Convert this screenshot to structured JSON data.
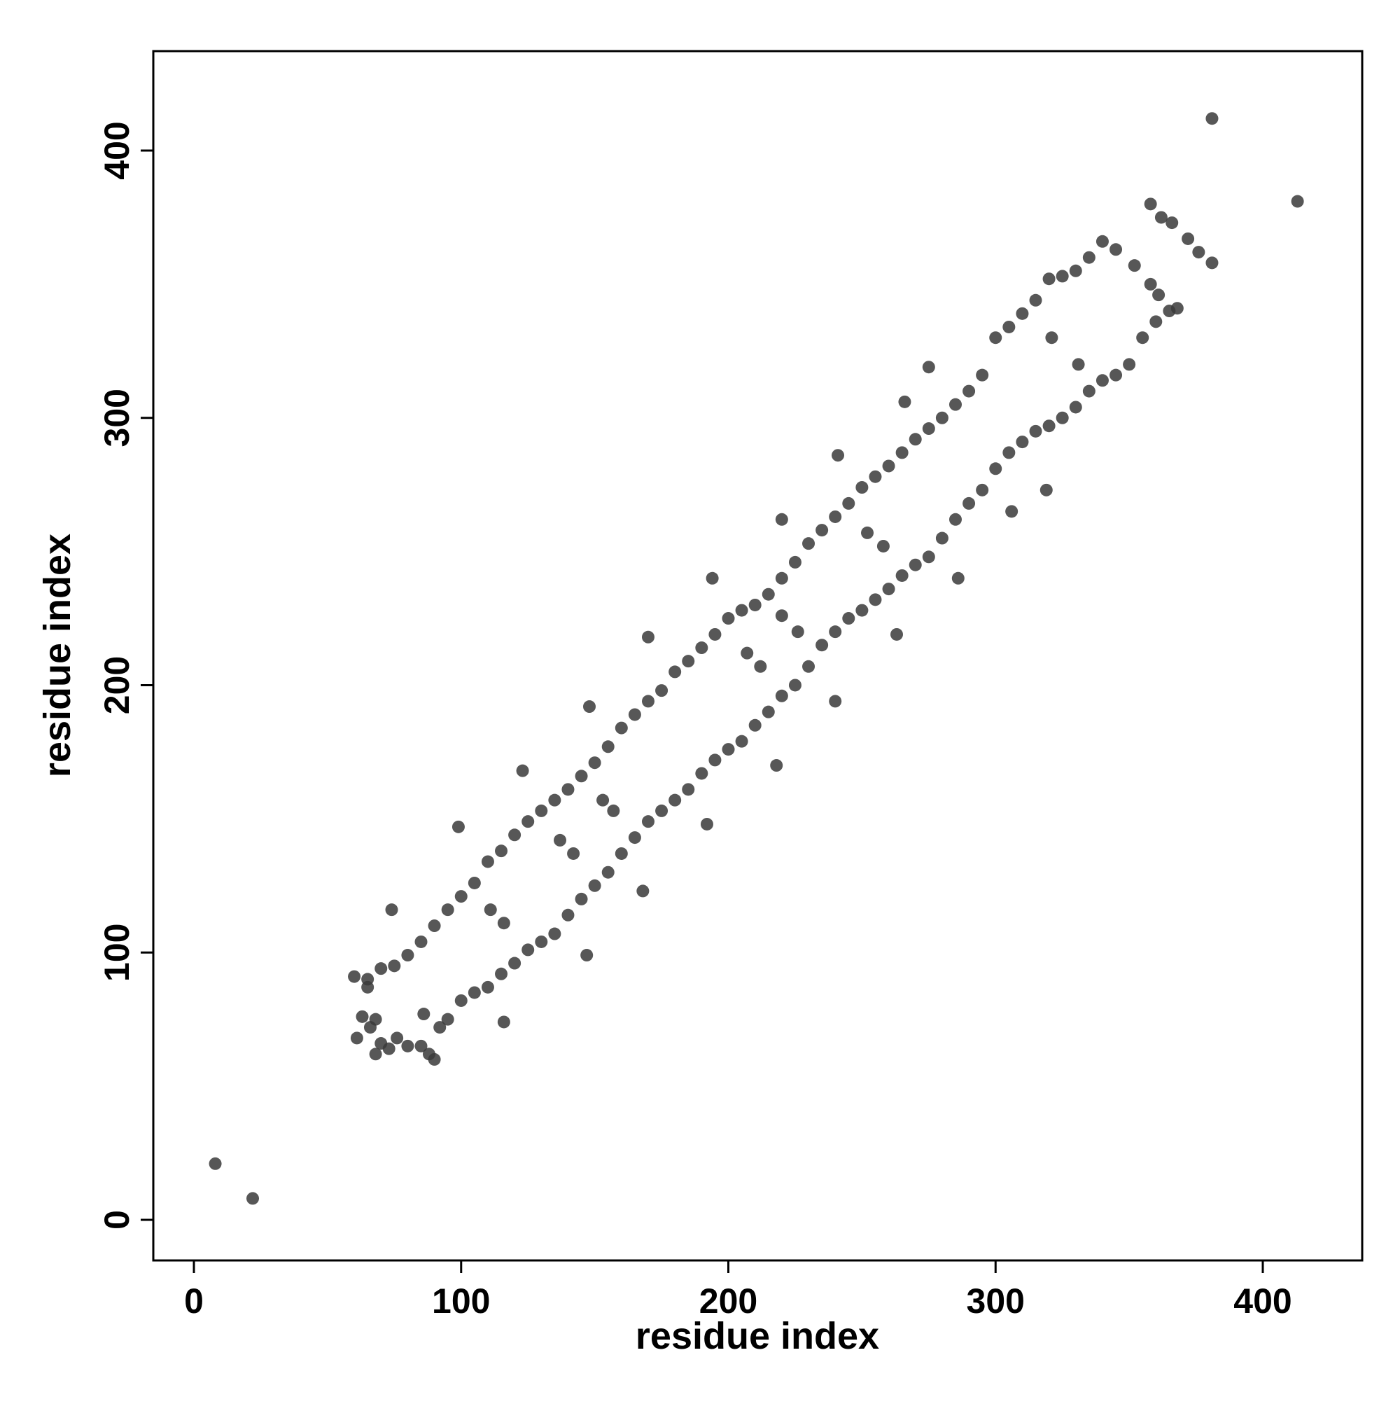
{
  "chart_data": {
    "type": "scatter",
    "x_label": "residue index",
    "y_label": "residue index",
    "color": "#3a3a3a",
    "xlim": [
      -15.2,
      437.2
    ],
    "ylim": [
      -15.2,
      437.2
    ],
    "xticks": [
      0,
      100,
      200,
      300,
      400
    ],
    "yticks": [
      0,
      100,
      200,
      300,
      400
    ],
    "x": [
      60,
      65,
      70,
      75,
      80,
      85,
      90,
      95,
      100,
      105,
      110,
      115,
      120,
      125,
      130,
      135,
      140,
      145,
      150,
      155,
      160,
      165,
      170,
      175,
      180,
      185,
      190,
      195,
      200,
      205,
      210,
      215,
      220,
      225,
      230,
      235,
      240,
      245,
      250,
      255,
      260,
      265,
      270,
      275,
      280,
      285,
      290,
      295,
      300,
      305,
      310,
      315,
      320,
      325,
      330,
      335,
      340,
      92,
      95,
      100,
      105,
      110,
      115,
      120,
      125,
      130,
      135,
      140,
      145,
      150,
      155,
      160,
      165,
      170,
      175,
      180,
      185,
      190,
      195,
      200,
      205,
      210,
      215,
      220,
      225,
      230,
      235,
      240,
      245,
      250,
      255,
      260,
      265,
      270,
      275,
      280,
      285,
      290,
      295,
      300,
      305,
      310,
      315,
      320,
      325,
      330,
      335,
      340,
      345,
      350,
      355,
      360,
      365,
      368,
      61,
      63,
      66,
      68,
      70,
      73,
      76,
      80,
      85,
      88,
      90,
      86,
      65,
      68,
      8,
      22,
      381,
      413,
      358,
      362,
      366,
      372,
      376,
      381,
      345,
      352,
      358,
      361,
      275,
      266,
      241,
      220,
      194,
      170,
      148,
      123,
      99,
      74,
      116,
      147,
      168,
      192,
      218,
      240,
      263,
      286,
      306,
      319,
      321,
      331,
      252,
      258,
      207,
      212,
      137,
      142,
      111,
      116,
      153,
      157,
      220,
      226
    ],
    "values": [
      91,
      90,
      94,
      95,
      99,
      104,
      110,
      116,
      121,
      126,
      134,
      138,
      144,
      149,
      153,
      157,
      161,
      166,
      171,
      177,
      184,
      189,
      194,
      198,
      205,
      209,
      214,
      219,
      225,
      228,
      230,
      234,
      240,
      246,
      253,
      258,
      263,
      268,
      274,
      278,
      282,
      287,
      292,
      296,
      300,
      305,
      310,
      316,
      330,
      334,
      339,
      344,
      352,
      353,
      355,
      360,
      366,
      72,
      75,
      82,
      85,
      87,
      92,
      96,
      101,
      104,
      107,
      114,
      120,
      125,
      130,
      137,
      143,
      149,
      153,
      157,
      161,
      167,
      172,
      176,
      179,
      185,
      190,
      196,
      200,
      207,
      215,
      220,
      225,
      228,
      232,
      236,
      241,
      245,
      248,
      255,
      262,
      268,
      273,
      281,
      287,
      291,
      295,
      297,
      300,
      304,
      310,
      314,
      316,
      320,
      330,
      336,
      340,
      341,
      68,
      76,
      72,
      62,
      66,
      64,
      68,
      65,
      65,
      62,
      60,
      77,
      87,
      75,
      21,
      8,
      412,
      381,
      380,
      375,
      373,
      367,
      362,
      358,
      363,
      357,
      350,
      346,
      319,
      306,
      286,
      262,
      240,
      218,
      192,
      168,
      147,
      116,
      74,
      99,
      123,
      148,
      170,
      194,
      219,
      240,
      265,
      273,
      330,
      320,
      257,
      252,
      212,
      207,
      142,
      137,
      116,
      111,
      157,
      153,
      226,
      220
    ]
  }
}
